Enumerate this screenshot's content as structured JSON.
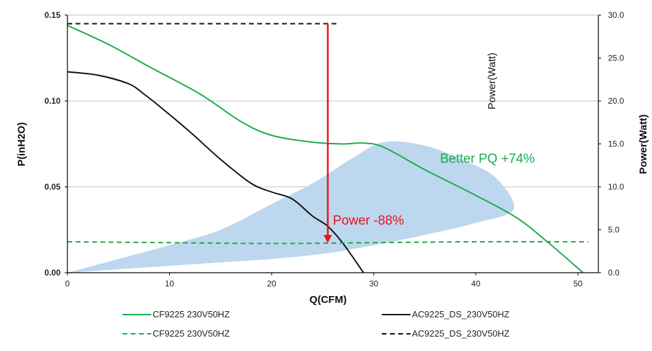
{
  "chart_data": {
    "type": "line",
    "xlabel": "Q(CFM)",
    "ylabel_left": "P(inH2O)",
    "ylabel_right": "Power(Watt)",
    "inner_label": "Power(Watt)",
    "xlim": [
      0,
      52
    ],
    "ylim_left": [
      0,
      0.15
    ],
    "ylim_right": [
      0,
      30
    ],
    "x_ticks": [
      "0",
      "10",
      "20",
      "30",
      "40",
      "50"
    ],
    "y_ticks_left": [
      "0.00",
      "0.05",
      "0.10",
      "0.15"
    ],
    "y_ticks_right": [
      "0.0",
      "5.0",
      "10.0",
      "15.0",
      "20.0",
      "25.0",
      "30.0"
    ],
    "grid": "horizontal",
    "colors": {
      "cf": "#1aab4b",
      "ac": "#111111",
      "region": "#bdd7ee",
      "arrow": "#e8141b",
      "grid": "#bfbfbf"
    },
    "series": [
      {
        "name": "CF9225 230V50HZ",
        "axis": "left",
        "style": "solid",
        "color": "#1aab4b",
        "x": [
          0,
          4,
          8,
          13,
          17,
          20,
          24,
          27,
          29,
          31,
          35,
          40,
          44,
          47,
          50.5
        ],
        "y": [
          0.144,
          0.133,
          0.12,
          0.104,
          0.088,
          0.08,
          0.076,
          0.075,
          0.0755,
          0.073,
          0.06,
          0.045,
          0.032,
          0.018,
          0.0
        ]
      },
      {
        "name": "AC9225_DS_230V50HZ",
        "axis": "left",
        "style": "solid",
        "color": "#111111",
        "x": [
          0,
          3,
          6,
          7.5,
          9,
          12,
          15,
          18,
          20,
          22,
          24,
          25.5,
          27,
          29
        ],
        "y": [
          0.117,
          0.115,
          0.11,
          0.104,
          0.097,
          0.082,
          0.066,
          0.052,
          0.047,
          0.043,
          0.033,
          0.027,
          0.017,
          0.0
        ]
      },
      {
        "name": "CF9225 230V50HZ",
        "axis": "right",
        "style": "dashed",
        "color": "#1aab4b",
        "x": [
          0,
          10,
          20,
          30,
          40,
          51
        ],
        "y": [
          3.6,
          3.5,
          3.4,
          3.5,
          3.6,
          3.6
        ]
      },
      {
        "name": "AC9225_DS_230V50HZ",
        "axis": "right",
        "style": "dashed",
        "color": "#111111",
        "x": [
          0,
          26.5
        ],
        "y": [
          29.0,
          29.0
        ]
      }
    ],
    "region": {
      "axis": "left",
      "points": [
        [
          0,
          0.0
        ],
        [
          5,
          0.008
        ],
        [
          10,
          0.016
        ],
        [
          15,
          0.025
        ],
        [
          20,
          0.04
        ],
        [
          24,
          0.052
        ],
        [
          28,
          0.067
        ],
        [
          31,
          0.076
        ],
        [
          35,
          0.074
        ],
        [
          39,
          0.065
        ],
        [
          42,
          0.055
        ],
        [
          43.7,
          0.037
        ],
        [
          40,
          0.029
        ],
        [
          35,
          0.022
        ],
        [
          30,
          0.016
        ],
        [
          25,
          0.011
        ],
        [
          20,
          0.008
        ],
        [
          15,
          0.006
        ],
        [
          10,
          0.004
        ],
        [
          5,
          0.002
        ],
        [
          0,
          0.0
        ]
      ]
    },
    "arrow": {
      "x": 25.5,
      "y_from_right": 29.0,
      "y_to_right": 3.6
    },
    "annotations": [
      {
        "text": "Better PQ +74%",
        "x": 36.5,
        "y": 0.064,
        "color": "#1aab4b"
      },
      {
        "text": "Power -88%",
        "x": 26,
        "y": 0.028,
        "color": "#e8141b"
      }
    ],
    "legend": {
      "placement": "bottom",
      "entries": [
        {
          "label": "CF9225 230V50HZ",
          "style": "solid",
          "color": "#1aab4b"
        },
        {
          "label": "AC9225_DS_230V50HZ",
          "style": "solid",
          "color": "#111111"
        },
        {
          "label": "CF9225 230V50HZ",
          "style": "dashed",
          "color": "#1aab4b"
        },
        {
          "label": "AC9225_DS_230V50HZ",
          "style": "dashed",
          "color": "#111111"
        }
      ]
    }
  }
}
